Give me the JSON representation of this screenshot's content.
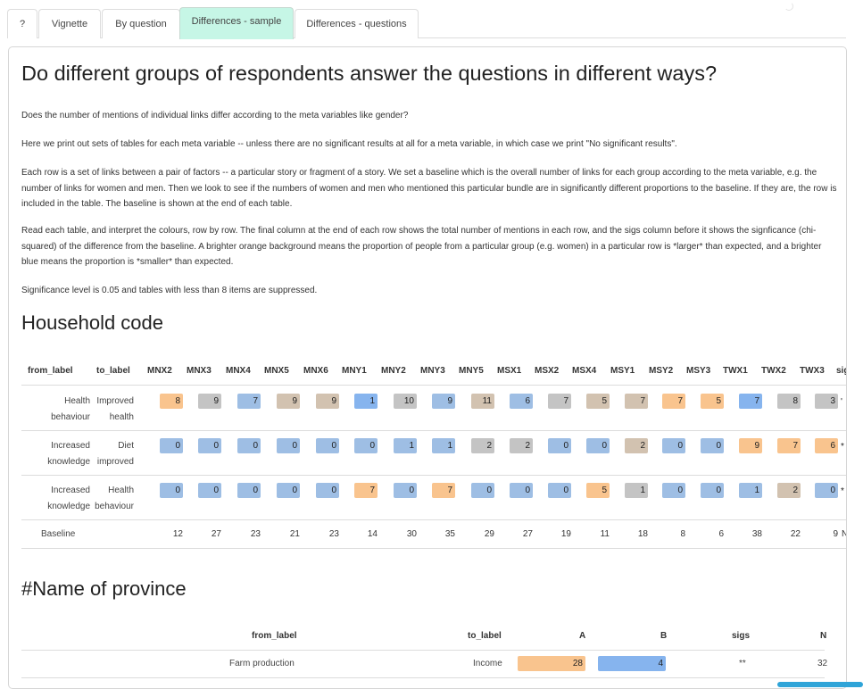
{
  "tabs": [
    "?",
    "Vignette",
    "By question",
    "Differences - sample",
    "Differences - questions"
  ],
  "active_tab": "Differences - sample",
  "page": {
    "title": "Do different groups of respondents answer the questions in different ways?",
    "paragraphs": [
      "Does the number of mentions of individual links differ according to the meta variables like gender?",
      "Here we print out sets of tables for each meta variable -- unless there are no significant results at all for a meta variable, in which case we print \"No significant results\".",
      "Each row is a set of links between a pair of factors -- a particular story or fragment of a story. We set a baseline which is the overall number of links for each group according to the meta variable, e.g. the number of links for women and men. Then we look to see if the numbers of women and men who mentioned this particular bundle are in significantly different proportions to the baseline. If they are, the row is included in the table. The baseline is shown at the end of each table.",
      "Read each table, and interpret the colours, row by row. The final column at the end of each row shows the total number of mentions in each row, and the sigs column before it shows the signficance (chi-squared) of the difference from the baseline. A brighter orange background means the proportion of people from a particular group (e.g. women) in a particular row is *larger* than expected, and a brighter blue means the proportion is *smaller* than expected.",
      "Significance level is 0.05 and tables with less than 8 items are suppressed."
    ]
  },
  "colors": {
    "orange": "#f9c48e",
    "blue": "#9ebee4",
    "grey": "#c4c4c4",
    "tan": "#d2c2b0",
    "blue_bright": "#86b4ee",
    "tab_active": "#c6f6e6"
  },
  "household": {
    "heading": "Household code",
    "headers": [
      "from_label",
      "to_label",
      "MNX2",
      "MNX3",
      "MNX4",
      "MNX5",
      "MNX6",
      "MNY1",
      "MNY2",
      "MNY3",
      "MNY5",
      "MSX1",
      "MSX2",
      "MSX4",
      "MSY1",
      "MSY2",
      "MSY3",
      "TWX1",
      "TWX2",
      "TWX3",
      "sig"
    ],
    "rows": [
      {
        "from": [
          "Health",
          "behaviour"
        ],
        "to": [
          "Improved",
          "health"
        ],
        "sig": "'",
        "cells": [
          {
            "v": "8",
            "c": "orange"
          },
          {
            "v": "9",
            "c": "grey"
          },
          {
            "v": "7",
            "c": "blue"
          },
          {
            "v": "9",
            "c": "tan"
          },
          {
            "v": "9",
            "c": "tan"
          },
          {
            "v": "1",
            "c": "blue_bright"
          },
          {
            "v": "10",
            "c": "grey"
          },
          {
            "v": "9",
            "c": "blue"
          },
          {
            "v": "11",
            "c": "tan"
          },
          {
            "v": "6",
            "c": "blue"
          },
          {
            "v": "7",
            "c": "grey"
          },
          {
            "v": "5",
            "c": "tan"
          },
          {
            "v": "7",
            "c": "tan"
          },
          {
            "v": "7",
            "c": "orange"
          },
          {
            "v": "5",
            "c": "orange"
          },
          {
            "v": "7",
            "c": "blue_bright"
          },
          {
            "v": "8",
            "c": "grey"
          },
          {
            "v": "3",
            "c": "grey"
          }
        ]
      },
      {
        "from": [
          "Increased",
          "knowledge"
        ],
        "to": [
          "Diet",
          "improved"
        ],
        "sig": "*",
        "cells": [
          {
            "v": "0",
            "c": "blue"
          },
          {
            "v": "0",
            "c": "blue"
          },
          {
            "v": "0",
            "c": "blue"
          },
          {
            "v": "0",
            "c": "blue"
          },
          {
            "v": "0",
            "c": "blue"
          },
          {
            "v": "0",
            "c": "blue"
          },
          {
            "v": "1",
            "c": "blue"
          },
          {
            "v": "1",
            "c": "blue"
          },
          {
            "v": "2",
            "c": "grey"
          },
          {
            "v": "2",
            "c": "grey"
          },
          {
            "v": "0",
            "c": "blue"
          },
          {
            "v": "0",
            "c": "blue"
          },
          {
            "v": "2",
            "c": "tan"
          },
          {
            "v": "0",
            "c": "blue"
          },
          {
            "v": "0",
            "c": "blue"
          },
          {
            "v": "9",
            "c": "orange"
          },
          {
            "v": "7",
            "c": "orange"
          },
          {
            "v": "6",
            "c": "orange"
          }
        ]
      },
      {
        "from": [
          "Increased",
          "knowledge"
        ],
        "to": [
          "Health",
          "behaviour"
        ],
        "sig": "*",
        "cells": [
          {
            "v": "0",
            "c": "blue"
          },
          {
            "v": "0",
            "c": "blue"
          },
          {
            "v": "0",
            "c": "blue"
          },
          {
            "v": "0",
            "c": "blue"
          },
          {
            "v": "0",
            "c": "blue"
          },
          {
            "v": "7",
            "c": "orange"
          },
          {
            "v": "0",
            "c": "blue"
          },
          {
            "v": "7",
            "c": "orange"
          },
          {
            "v": "0",
            "c": "blue"
          },
          {
            "v": "0",
            "c": "blue"
          },
          {
            "v": "0",
            "c": "blue"
          },
          {
            "v": "5",
            "c": "orange"
          },
          {
            "v": "1",
            "c": "grey"
          },
          {
            "v": "0",
            "c": "blue"
          },
          {
            "v": "0",
            "c": "blue"
          },
          {
            "v": "1",
            "c": "blue"
          },
          {
            "v": "2",
            "c": "tan"
          },
          {
            "v": "0",
            "c": "blue"
          }
        ]
      }
    ],
    "baseline": {
      "label": "Baseline",
      "values": [
        "12",
        "27",
        "23",
        "21",
        "23",
        "14",
        "30",
        "35",
        "29",
        "27",
        "19",
        "11",
        "18",
        "8",
        "6",
        "38",
        "22",
        "9"
      ],
      "n": "N"
    }
  },
  "province": {
    "heading": "#Name of province",
    "headers": [
      "from_label",
      "to_label",
      "A",
      "B",
      "sigs",
      "N"
    ],
    "row": {
      "from": "Farm production",
      "to": "Income",
      "a": "28",
      "b": "4",
      "sigs": "**",
      "n": "32"
    }
  }
}
